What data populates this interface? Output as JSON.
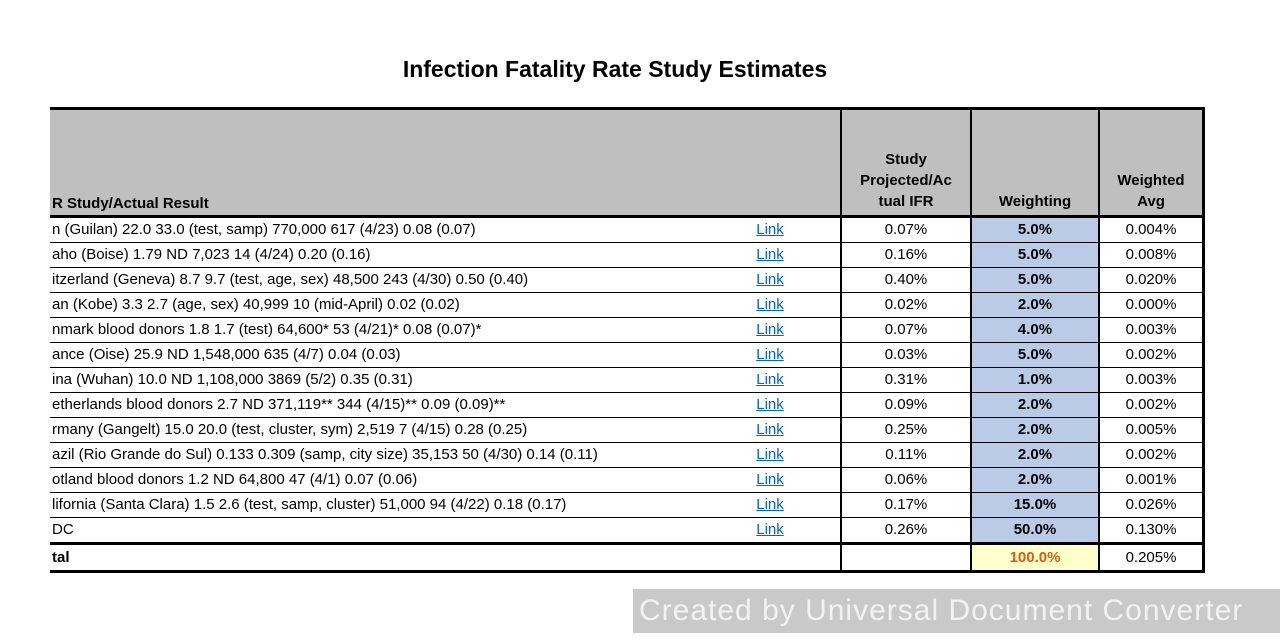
{
  "title": "Infection Fatality Rate Study Estimates",
  "watermark": "Created by Universal Document Converter",
  "colors": {
    "header_gray": "#bfbfbf",
    "weighting_blue": "#b9cbe6",
    "total_yellow": "#ffffcc",
    "total_orange": "#dd5c10",
    "link_blue": "#0563c1",
    "watermark_gray": "#c9c9c9"
  },
  "table": {
    "headers": {
      "study": "R Study/Actual Result",
      "ifr": "Study\nProjected/Ac\ntual IFR",
      "weighting": "Weighting",
      "weighted_avg": "Weighted\nAvg"
    },
    "rows": [
      {
        "study": "n (Guilan) 22.0 33.0 (test, samp) 770,000 617 (4/23) 0.08 (0.07)",
        "link": "Link",
        "ifr": "0.07%",
        "weighting": "5.0%",
        "weighted_avg": "0.004%"
      },
      {
        "study": "aho (Boise) 1.79 ND 7,023 14 (4/24) 0.20 (0.16)",
        "link": "Link",
        "ifr": "0.16%",
        "weighting": "5.0%",
        "weighted_avg": "0.008%"
      },
      {
        "study": "itzerland (Geneva) 8.7 9.7 (test, age, sex) 48,500 243 (4/30) 0.50 (0.40)",
        "link": "Link",
        "ifr": "0.40%",
        "weighting": "5.0%",
        "weighted_avg": "0.020%"
      },
      {
        "study": "an (Kobe) 3.3 2.7 (age, sex) 40,999 10 (mid-April) 0.02 (0.02)",
        "link": "Link",
        "ifr": "0.02%",
        "weighting": "2.0%",
        "weighted_avg": "0.000%"
      },
      {
        "study": "nmark blood donors 1.8 1.7 (test) 64,600* 53 (4/21)* 0.08 (0.07)*",
        "link": "Link",
        "ifr": "0.07%",
        "weighting": "4.0%",
        "weighted_avg": "0.003%"
      },
      {
        "study": "ance (Oise) 25.9 ND 1,548,000 635 (4/7) 0.04 (0.03)",
        "link": "Link",
        "ifr": "0.03%",
        "weighting": "5.0%",
        "weighted_avg": "0.002%"
      },
      {
        "study": "ina (Wuhan) 10.0 ND 1,108,000 3869 (5/2) 0.35 (0.31)",
        "link": "Link",
        "ifr": "0.31%",
        "weighting": "1.0%",
        "weighted_avg": "0.003%"
      },
      {
        "study": "etherlands blood donors 2.7 ND 371,119** 344 (4/15)** 0.09 (0.09)**",
        "link": "Link",
        "ifr": "0.09%",
        "weighting": "2.0%",
        "weighted_avg": "0.002%"
      },
      {
        "study": "rmany (Gangelt) 15.0 20.0 (test, cluster, sym) 2,519 7 (4/15) 0.28 (0.25)",
        "link": "Link",
        "ifr": "0.25%",
        "weighting": "2.0%",
        "weighted_avg": "0.005%"
      },
      {
        "study": "azil (Rio Grande do Sul) 0.133 0.309 (samp, city size) 35,153 50 (4/30) 0.14 (0.11)",
        "link": "Link",
        "ifr": "0.11%",
        "weighting": "2.0%",
        "weighted_avg": "0.002%"
      },
      {
        "study": "otland blood donors 1.2 ND 64,800 47 (4/1) 0.07 (0.06)",
        "link": "Link",
        "ifr": "0.06%",
        "weighting": "2.0%",
        "weighted_avg": "0.001%"
      },
      {
        "study": "lifornia (Santa Clara) 1.5 2.6 (test, samp, cluster) 51,000 94 (4/22) 0.18 (0.17)",
        "link": "Link",
        "ifr": "0.17%",
        "weighting": "15.0%",
        "weighted_avg": "0.026%"
      },
      {
        "study": "DC",
        "link": "Link",
        "ifr": "0.26%",
        "weighting": "50.0%",
        "weighted_avg": "0.130%"
      }
    ],
    "total": {
      "label": "tal",
      "ifr": "",
      "weighting": "100.0%",
      "weighted_avg": "0.205%"
    }
  }
}
